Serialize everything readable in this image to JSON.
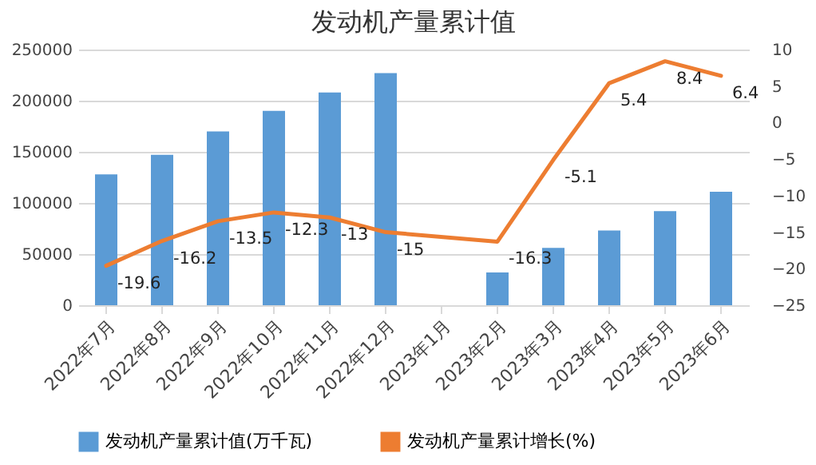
{
  "chart_data": {
    "type": "bar",
    "title": "发动机产量累计值",
    "categories": [
      "2022年7月",
      "2022年8月",
      "2022年9月",
      "2022年10月",
      "2022年11月",
      "2022年12月",
      "2023年1月",
      "2023年2月",
      "2023年3月",
      "2023年4月",
      "2023年5月",
      "2023年6月"
    ],
    "series": [
      {
        "name": "发动机产量累计值(万千瓦)",
        "color": "#5b9bd5",
        "values": [
          128000,
          147000,
          170000,
          190000,
          208000,
          227000,
          null,
          32000,
          56000,
          73000,
          92000,
          111000
        ]
      },
      {
        "name": "发动机产量累计增长(%)",
        "type": "line",
        "axis": "y2",
        "color": "#ed7d31",
        "values": [
          -19.6,
          -16.2,
          -13.5,
          -12.3,
          -13,
          -15,
          null,
          -16.3,
          -5.1,
          5.4,
          8.4,
          6.4
        ],
        "value_labels": [
          "-19.6",
          "-16.2",
          "-13.5",
          "-12.3",
          "-13",
          "-15",
          null,
          "-16.3",
          "-5.1",
          "5.4",
          "8.4",
          "6.4"
        ]
      }
    ],
    "ylim": [
      0,
      250000
    ],
    "yticks": [
      0,
      50000,
      100000,
      150000,
      200000,
      250000
    ],
    "y2lim": [
      -25,
      10
    ],
    "y2ticks": [
      -25,
      -20,
      -15,
      -10,
      -5,
      0,
      5,
      10
    ],
    "grid": "y",
    "legend": "bottom"
  }
}
